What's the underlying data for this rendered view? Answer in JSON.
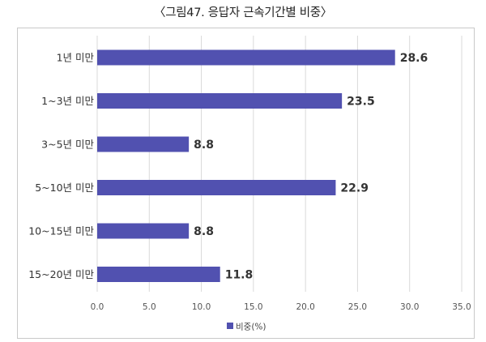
{
  "title": "〈그림47. 응답자 근속기간별 비중〉",
  "chart_data": {
    "type": "bar",
    "orientation": "horizontal",
    "title": "〈그림47. 응답자 근속기간별 비중〉",
    "categories": [
      "1년 미만",
      "1~3년 미만",
      "3~5년 미만",
      "5~10년 미만",
      "10~15년 미만",
      "15~20년 미만"
    ],
    "series": [
      {
        "name": "비중(%)",
        "values": [
          28.6,
          23.5,
          8.8,
          22.9,
          8.8,
          11.8
        ],
        "color": "#5151b0"
      }
    ],
    "value_labels": [
      "28.6",
      "23.5",
      "8.8",
      "22.9",
      "8.8",
      "11.8"
    ],
    "xlim": [
      0,
      35
    ],
    "x_ticks": [
      "0.0",
      "5.0",
      "10.0",
      "15.0",
      "20.0",
      "25.0",
      "30.0",
      "35.0"
    ],
    "grid": true,
    "legend_position": "bottom"
  },
  "colors": {
    "bar": "#5151b0",
    "grid": "#d9d9d9",
    "frame": "#c9c9c9"
  }
}
